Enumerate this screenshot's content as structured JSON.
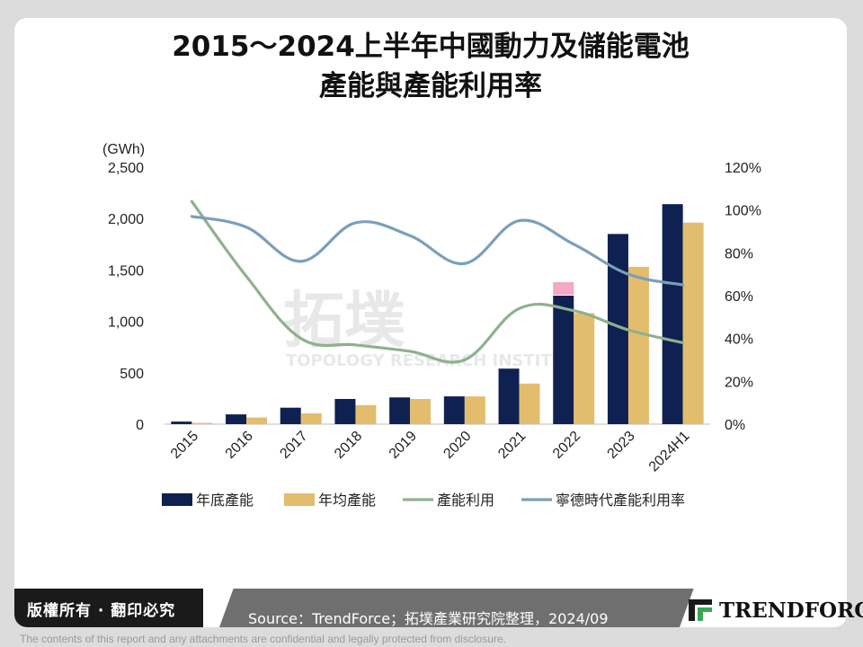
{
  "title_line1": "2015～2024上半年中國動力及儲能電池",
  "title_line2": "產能與產能利用率",
  "watermark": {
    "main": "拓墣",
    "sub": "TOPOLOGY RESEARCH INSTITUTE"
  },
  "footer": {
    "copyright": "版權所有 · 翻印必究",
    "source": "Source：TrendForce；拓墣產業研究院整理，2024/09",
    "logo": "TRENDFORCE",
    "disclaimer": "The contents of this report and any attachments are confidential and legally protected from disclosure."
  },
  "colors": {
    "navy": "#0f2150",
    "gold": "#e3bd6e",
    "green": "#8fb18e",
    "blue": "#7a9fbb",
    "pink": "#f3a8c4"
  },
  "chart_data": {
    "type": "bar",
    "ylabel_left": "(GWh)",
    "left_ticks": [
      "0",
      "500",
      "1,000",
      "1,500",
      "2,000",
      "2,500"
    ],
    "ylim_left": [
      0,
      2500
    ],
    "right_ticks": [
      "0%",
      "20%",
      "40%",
      "60%",
      "80%",
      "100%",
      "120%"
    ],
    "ylim_right": [
      0,
      1.2
    ],
    "categories": [
      "2015",
      "2016",
      "2017",
      "2018",
      "2019",
      "2020",
      "2021",
      "2022",
      "2023",
      "2024H1"
    ],
    "series": [
      {
        "name": "年底產能",
        "type": "bar",
        "axis": "left",
        "color": "#0f2150",
        "values": [
          25,
          95,
          160,
          245,
          260,
          270,
          540,
          1250,
          1850,
          2140
        ]
      },
      {
        "name": "年均產能",
        "type": "bar",
        "axis": "left",
        "color": "#e3bd6e",
        "values": [
          12,
          65,
          105,
          185,
          245,
          270,
          395,
          1080,
          1530,
          1960
        ]
      },
      {
        "name": "產能利用",
        "type": "line",
        "axis": "right",
        "color": "#8fb18e",
        "values": [
          1.04,
          0.69,
          0.4,
          0.37,
          0.34,
          0.3,
          0.54,
          0.53,
          0.44,
          0.38
        ]
      },
      {
        "name": "寧德時代產能利用率",
        "type": "line",
        "axis": "right",
        "color": "#7a9fbb",
        "values": [
          0.97,
          0.92,
          0.76,
          0.94,
          0.88,
          0.75,
          0.95,
          0.84,
          0.7,
          0.65
        ]
      }
    ],
    "grid": false,
    "legend_position": "bottom"
  }
}
